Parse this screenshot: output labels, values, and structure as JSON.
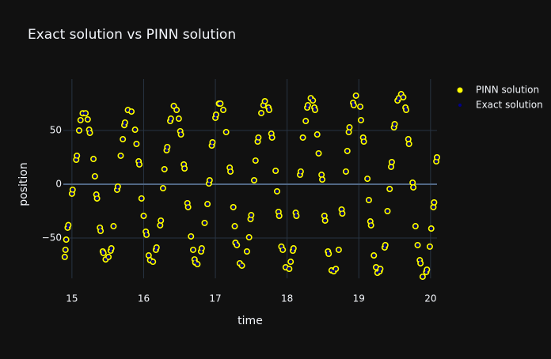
{
  "chart_data": {
    "type": "scatter",
    "title": "Exact solution vs PINN solution",
    "x_label": "time",
    "y_label": "position",
    "xlim": [
      14.88,
      20.09
    ],
    "ylim": [
      -87.5,
      97.8
    ],
    "xticks": [
      15,
      16,
      17,
      18,
      19,
      20
    ],
    "yticks": [
      {
        "value": -50,
        "label": "−50"
      },
      0,
      50
    ],
    "grid": true,
    "legend": "top-right",
    "x": [
      14.9,
      14.91,
      14.92,
      14.94,
      14.95,
      15.0,
      15.01,
      15.06,
      15.07,
      15.1,
      15.12,
      15.15,
      15.19,
      15.22,
      15.24,
      15.25,
      15.3,
      15.32,
      15.34,
      15.35,
      15.39,
      15.4,
      15.43,
      15.44,
      15.47,
      15.51,
      15.54,
      15.55,
      15.58,
      15.63,
      15.64,
      15.68,
      15.71,
      15.73,
      15.74,
      15.78,
      15.83,
      15.88,
      15.9,
      15.93,
      15.94,
      15.97,
      16.0,
      16.03,
      16.04,
      16.07,
      16.09,
      16.13,
      16.17,
      16.18,
      16.23,
      16.24,
      16.27,
      16.29,
      16.32,
      16.33,
      16.37,
      16.38,
      16.42,
      16.46,
      16.49,
      16.51,
      16.52,
      16.56,
      16.57,
      16.61,
      16.62,
      16.66,
      16.69,
      16.71,
      16.72,
      16.75,
      16.8,
      16.81,
      16.85,
      16.89,
      16.91,
      16.92,
      16.95,
      16.96,
      17.0,
      17.01,
      17.05,
      17.07,
      17.11,
      17.15,
      17.2,
      17.21,
      17.25,
      17.27,
      17.28,
      17.3,
      17.34,
      17.37,
      17.44,
      17.47,
      17.49,
      17.5,
      17.54,
      17.56,
      17.59,
      17.6,
      17.64,
      17.67,
      17.69,
      17.74,
      17.75,
      17.78,
      17.79,
      17.84,
      17.86,
      17.88,
      17.89,
      17.92,
      17.94,
      17.98,
      18.03,
      18.05,
      18.08,
      18.09,
      18.12,
      18.13,
      18.18,
      18.19,
      18.22,
      18.26,
      18.28,
      18.29,
      18.33,
      18.36,
      18.38,
      18.39,
      18.42,
      18.44,
      18.48,
      18.49,
      18.52,
      18.53,
      18.57,
      18.58,
      18.62,
      18.65,
      18.68,
      18.72,
      18.76,
      18.77,
      18.82,
      18.84,
      18.86,
      18.87,
      18.92,
      18.93,
      18.96,
      19.02,
      19.03,
      19.06,
      19.07,
      19.12,
      19.14,
      19.16,
      19.17,
      19.21,
      19.24,
      19.26,
      19.29,
      19.3,
      19.36,
      19.37,
      19.4,
      19.43,
      19.45,
      19.46,
      19.49,
      19.5,
      19.54,
      19.56,
      19.59,
      19.62,
      19.65,
      19.66,
      19.69,
      19.7,
      19.75,
      19.76,
      19.79,
      19.82,
      19.85,
      19.86,
      19.89,
      19.94,
      19.95,
      19.99,
      20.01,
      20.04,
      20.05,
      20.08,
      20.09
    ],
    "series": [
      {
        "name": "PINN solution",
        "color": "#ffff00",
        "values": [
          -67.6,
          -61,
          -51.5,
          -40.4,
          -38,
          -8.8,
          -5.1,
          22.8,
          26.5,
          50,
          59.6,
          66,
          66,
          60.3,
          50.7,
          47.8,
          23.5,
          7.4,
          -9.6,
          -13.2,
          -40.4,
          -43.4,
          -62.5,
          -64,
          -69.9,
          -67.6,
          -61.8,
          -59.6,
          -39,
          -5.1,
          -2.2,
          26.5,
          41.9,
          55,
          57.4,
          69,
          67.6,
          50.7,
          37.5,
          21.3,
          18.4,
          -13.2,
          -29.4,
          -44.1,
          -47,
          -66.2,
          -70.6,
          -72.1,
          -61,
          -58.8,
          -38.2,
          -33.8,
          -3.7,
          14,
          31.6,
          34.6,
          58.8,
          61,
          72.8,
          69.1,
          61,
          49.3,
          46.3,
          18.4,
          14.7,
          -17.6,
          -21.3,
          -48.5,
          -61,
          -69.9,
          -72.8,
          -74.3,
          -62.5,
          -59.6,
          -36,
          -18.4,
          0.7,
          3.7,
          36,
          39,
          61.8,
          64.7,
          75,
          75,
          69.1,
          48.5,
          15.4,
          11.8,
          -21.3,
          -39,
          -54.4,
          -56.6,
          -73.5,
          -75.7,
          -62.5,
          -49.3,
          -32.4,
          -28.7,
          3.7,
          22,
          39.7,
          43.4,
          66.2,
          73.5,
          77.2,
          71.3,
          69.1,
          47,
          43.4,
          12.5,
          -6.6,
          -25.7,
          -29.4,
          -58,
          -61,
          -77.2,
          -78.7,
          -72.1,
          -61.8,
          -59.6,
          -26.5,
          -29.4,
          8.8,
          11.8,
          43.4,
          58.8,
          71.3,
          73.5,
          80.1,
          77.9,
          71.3,
          69.1,
          46.3,
          28.7,
          8.8,
          4.4,
          -29.4,
          -33.8,
          -62.5,
          -64.7,
          -80.1,
          -80.9,
          -78.7,
          -61,
          -23.5,
          -27.2,
          11.8,
          30.9,
          48.5,
          52.9,
          75.7,
          73.5,
          82.4,
          72.1,
          59.6,
          43.4,
          39.7,
          5.1,
          -14.7,
          -34.6,
          -38.2,
          -66.2,
          -77.2,
          -82.4,
          -80.9,
          -78.7,
          -58.8,
          -56.6,
          -25,
          -4.4,
          16.2,
          20.6,
          52.9,
          55.9,
          77.9,
          80.1,
          83.8,
          80.9,
          71.3,
          69.1,
          41.9,
          37.5,
          1.5,
          -2.9,
          -39,
          -56.6,
          -70.6,
          -73.5,
          -86,
          -81.6,
          -79.4,
          -58,
          -41.2,
          -21.3,
          -16.9,
          21.3,
          25
        ]
      },
      {
        "name": "Exact solution",
        "color": "#00008b",
        "values": [
          -67.6,
          -61,
          -51.5,
          -40.4,
          -38,
          -8.8,
          -5.1,
          22.8,
          26.5,
          50,
          59.6,
          66,
          66,
          60.3,
          50.7,
          47.8,
          23.5,
          7.4,
          -9.6,
          -13.2,
          -40.4,
          -43.4,
          -62.5,
          -64,
          -69.9,
          -67.6,
          -61.8,
          -59.6,
          -39,
          -5.1,
          -2.2,
          26.5,
          41.9,
          55,
          57.4,
          69,
          67.6,
          50.7,
          37.5,
          21.3,
          18.4,
          -13.2,
          -29.4,
          -44.1,
          -47,
          -66.2,
          -70.6,
          -72.1,
          -61,
          -58.8,
          -38.2,
          -33.8,
          -3.7,
          14,
          31.6,
          34.6,
          58.8,
          61,
          72.8,
          69.1,
          61,
          49.3,
          46.3,
          18.4,
          14.7,
          -17.6,
          -21.3,
          -48.5,
          -61,
          -69.9,
          -72.8,
          -74.3,
          -62.5,
          -59.6,
          -36,
          -18.4,
          0.7,
          3.7,
          36,
          39,
          61.8,
          64.7,
          75,
          75,
          69.1,
          48.5,
          15.4,
          11.8,
          -21.3,
          -39,
          -54.4,
          -56.6,
          -73.5,
          -75.7,
          -62.5,
          -49.3,
          -32.4,
          -28.7,
          3.7,
          22,
          39.7,
          43.4,
          66.2,
          73.5,
          77.2,
          71.3,
          69.1,
          47,
          43.4,
          12.5,
          -6.6,
          -25.7,
          -29.4,
          -58,
          -61,
          -77.2,
          -78.7,
          -72.1,
          -61.8,
          -59.6,
          -26.5,
          -29.4,
          8.8,
          11.8,
          43.4,
          58.8,
          71.3,
          73.5,
          80.1,
          77.9,
          71.3,
          69.1,
          46.3,
          28.7,
          8.8,
          4.4,
          -29.4,
          -33.8,
          -62.5,
          -64.7,
          -80.1,
          -80.9,
          -78.7,
          -61,
          -23.5,
          -27.2,
          11.8,
          30.9,
          48.5,
          52.9,
          75.7,
          73.5,
          82.4,
          72.1,
          59.6,
          43.4,
          39.7,
          5.1,
          -14.7,
          -34.6,
          -38.2,
          -66.2,
          -77.2,
          -82.4,
          -80.9,
          -78.7,
          -58.8,
          -56.6,
          -25,
          -4.4,
          16.2,
          20.6,
          52.9,
          55.9,
          77.9,
          80.1,
          83.8,
          80.9,
          71.3,
          69.1,
          41.9,
          37.5,
          1.5,
          -2.9,
          -39,
          -56.6,
          -70.6,
          -73.5,
          -86,
          -81.6,
          -79.4,
          -58,
          -41.2,
          -21.3,
          -16.9,
          21.3,
          25
        ]
      }
    ]
  }
}
